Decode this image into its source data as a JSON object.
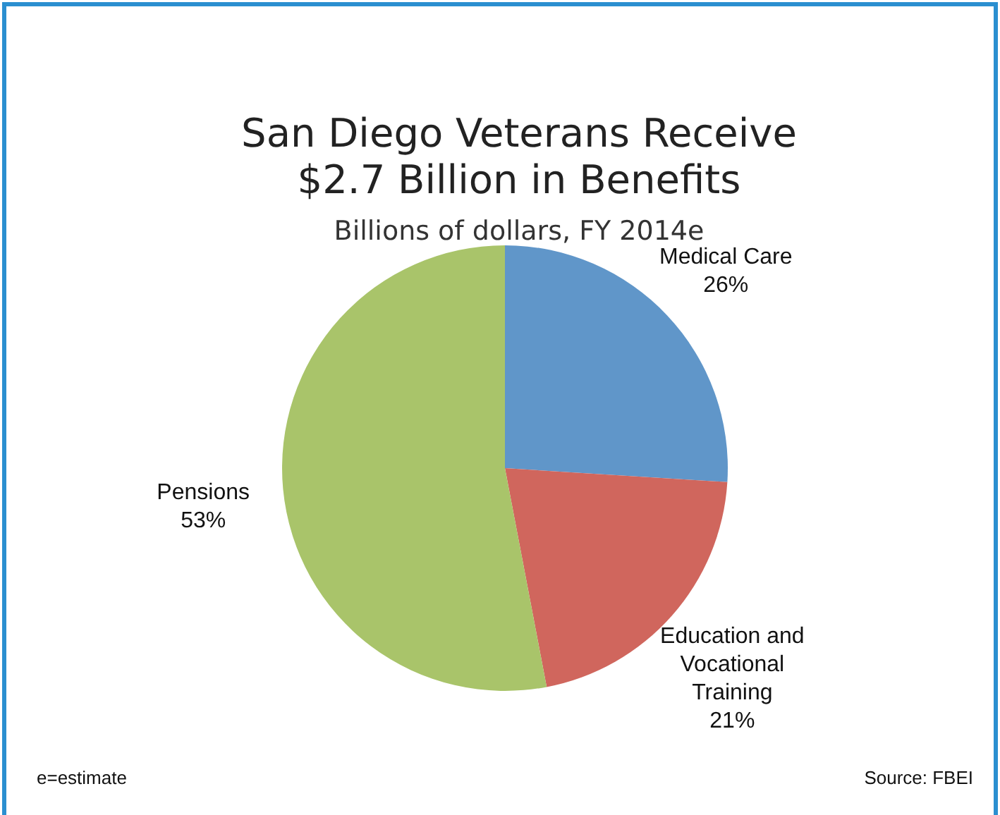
{
  "chart_data": {
    "type": "pie",
    "title": "San Diego Veterans Receive\n$2.7 Billion in Benefits",
    "subtitle": "Billions of dollars, FY 2014e",
    "categories": [
      "Medical Care",
      "Education and Vocational Training",
      "Pensions"
    ],
    "values": [
      26,
      21,
      53
    ],
    "colors": [
      "#6096c9",
      "#d0665d",
      "#a9c46a"
    ],
    "value_labels": [
      "26%",
      "21%",
      "53%"
    ],
    "annotations": [
      "e=estimate",
      "Source: FBEI"
    ]
  }
}
